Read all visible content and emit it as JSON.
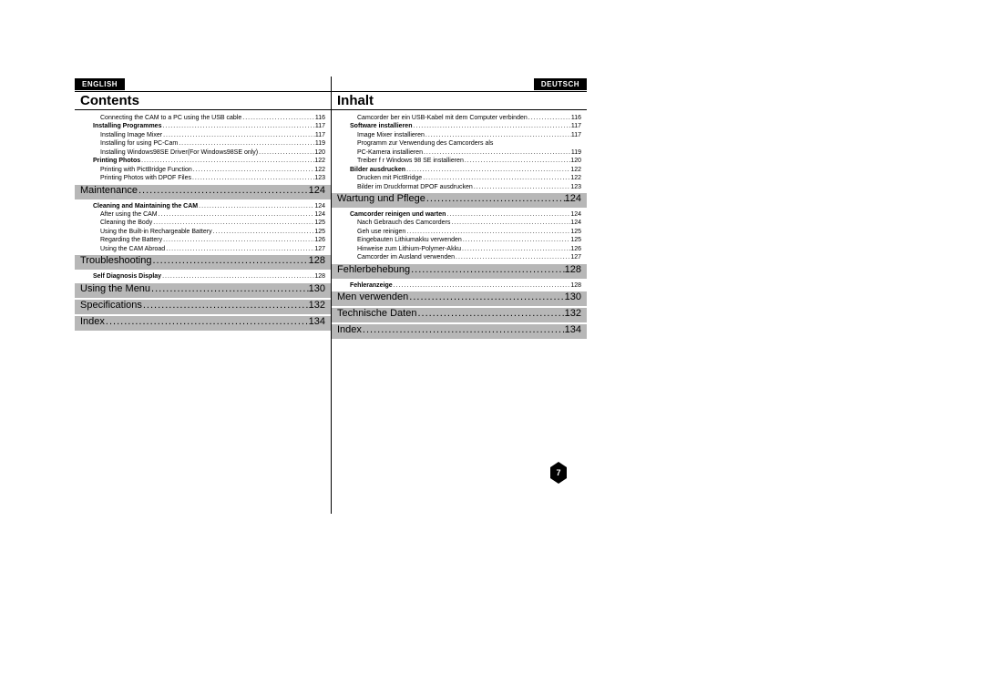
{
  "page_number": "7",
  "left": {
    "lang": "ENGLISH",
    "title": "Contents",
    "pre_items": [
      {
        "indent": 2,
        "bold": false,
        "label": "Connecting the CAM to a PC using the USB cable",
        "page": "116"
      },
      {
        "indent": 1,
        "bold": true,
        "label": "Installing Programmes",
        "page": "117"
      },
      {
        "indent": 2,
        "bold": false,
        "label": "Installing Image Mixer",
        "page": "117"
      },
      {
        "indent": 2,
        "bold": false,
        "label": "Installing for using PC-Cam",
        "page": "119"
      },
      {
        "indent": 2,
        "bold": false,
        "label": "Installing Windows98SE Driver(For Windows98SE only)",
        "page": "120"
      },
      {
        "indent": 1,
        "bold": true,
        "label": "Printing Photos",
        "page": "122"
      },
      {
        "indent": 2,
        "bold": false,
        "label": "Printing with PictBridge Function",
        "page": "122"
      },
      {
        "indent": 2,
        "bold": false,
        "label": "Printing Photos with DPOF Files",
        "page": "123"
      }
    ],
    "sections": [
      {
        "header": {
          "label": "Maintenance",
          "page": "124"
        },
        "items": [
          {
            "indent": 1,
            "bold": true,
            "label": "Cleaning and Maintaining the CAM",
            "page": "124"
          },
          {
            "indent": 2,
            "bold": false,
            "label": "After using the CAM",
            "page": "124"
          },
          {
            "indent": 2,
            "bold": false,
            "label": "Cleaning the Body",
            "page": "125"
          },
          {
            "indent": 2,
            "bold": false,
            "label": "Using the Built-in Rechargeable Battery",
            "page": "125"
          },
          {
            "indent": 2,
            "bold": false,
            "label": "Regarding the Battery",
            "page": "126"
          },
          {
            "indent": 2,
            "bold": false,
            "label": "Using the CAM Abroad",
            "page": "127"
          }
        ]
      },
      {
        "header": {
          "label": "Troubleshooting",
          "page": "128"
        },
        "items": [
          {
            "indent": 1,
            "bold": true,
            "label": "Self Diagnosis Display",
            "page": "128"
          }
        ]
      },
      {
        "header": {
          "label": "Using the Menu",
          "page": "130"
        },
        "items": []
      },
      {
        "header": {
          "label": "Specifications",
          "page": "132"
        },
        "items": []
      },
      {
        "header": {
          "label": "Index",
          "page": "134"
        },
        "items": []
      }
    ]
  },
  "right": {
    "lang": "DEUTSCH",
    "title": "Inhalt",
    "pre_items": [
      {
        "indent": 2,
        "bold": false,
        "label": "Camcorder  ber ein USB-Kabel mit dem Computer verbinden",
        "page": "116"
      },
      {
        "indent": 1,
        "bold": true,
        "label": "Software installieren",
        "page": "117"
      },
      {
        "indent": 2,
        "bold": false,
        "label": "Image Mixer installieren",
        "page": "117"
      },
      {
        "indent": 2,
        "bold": false,
        "label": "Programm zur Verwendung des Camcorders als",
        "page": ""
      },
      {
        "indent": 2,
        "bold": false,
        "label": "PC-Kamera installieren",
        "page": "119"
      },
      {
        "indent": 2,
        "bold": false,
        "label": "Treiber f r Windows 98 SE installieren",
        "page": "120"
      },
      {
        "indent": 1,
        "bold": true,
        "label": "Bilder ausdrucken",
        "page": "122"
      },
      {
        "indent": 2,
        "bold": false,
        "label": "Drucken mit PictBridge",
        "page": "122"
      },
      {
        "indent": 2,
        "bold": false,
        "label": "Bilder im Druckformat DPOF ausdrucken",
        "page": "123"
      }
    ],
    "sections": [
      {
        "header": {
          "label": "Wartung und Pflege",
          "page": "124"
        },
        "items": [
          {
            "indent": 1,
            "bold": true,
            "label": "Camcorder reinigen und warten",
            "page": "124"
          },
          {
            "indent": 2,
            "bold": false,
            "label": "Nach Gebrauch des Camcorders",
            "page": "124"
          },
          {
            "indent": 2,
            "bold": false,
            "label": "Geh use reinigen",
            "page": "125"
          },
          {
            "indent": 2,
            "bold": false,
            "label": "Eingebauten Lithiumakku verwenden",
            "page": "125"
          },
          {
            "indent": 2,
            "bold": false,
            "label": "Hinweise zum Lithium-Polymer-Akku",
            "page": "126"
          },
          {
            "indent": 2,
            "bold": false,
            "label": "Camcorder im Ausland verwenden",
            "page": "127"
          }
        ]
      },
      {
        "header": {
          "label": "Fehlerbehebung",
          "page": "128"
        },
        "items": [
          {
            "indent": 1,
            "bold": true,
            "label": "Fehleranzeige",
            "page": "128"
          }
        ]
      },
      {
        "header": {
          "label": "Men  verwenden",
          "page": "130"
        },
        "items": []
      },
      {
        "header": {
          "label": "Technische Daten",
          "page": "132"
        },
        "items": []
      },
      {
        "header": {
          "label": "Index",
          "page": "134"
        },
        "items": []
      }
    ]
  },
  "colors": {
    "section_bg": "#b7b7b7",
    "text": "#000000",
    "badge_bg": "#000000",
    "badge_fg": "#ffffff"
  }
}
